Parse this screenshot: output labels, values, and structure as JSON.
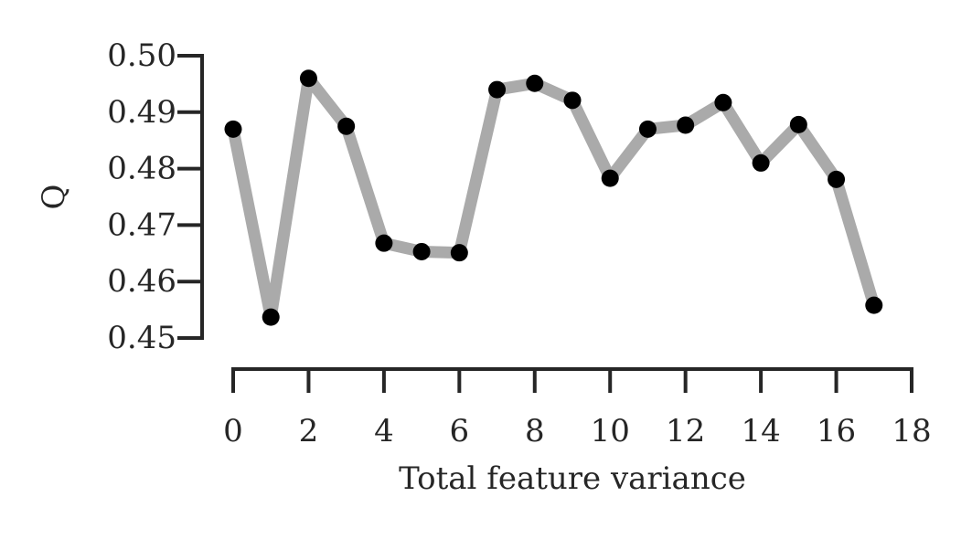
{
  "chart_data": {
    "type": "line",
    "title": "",
    "xlabel": "Total feature variance",
    "ylabel": "Q",
    "xlim": [
      0,
      18
    ],
    "ylim": [
      0.45,
      0.5
    ],
    "x_ticks": [
      0,
      2,
      4,
      6,
      8,
      10,
      12,
      14,
      16,
      18
    ],
    "x_tick_labels": [
      "0",
      "2",
      "4",
      "6",
      "8",
      "10",
      "12",
      "14",
      "16",
      "18"
    ],
    "y_ticks": [
      0.45,
      0.46,
      0.47,
      0.48,
      0.49,
      0.5
    ],
    "y_tick_labels": [
      "0.45",
      "0.46",
      "0.47",
      "0.48",
      "0.49",
      "0.50"
    ],
    "grid": false,
    "legend": "none",
    "series": [
      {
        "x": [
          0,
          1,
          2,
          3,
          4,
          5,
          6,
          7,
          8,
          9,
          10,
          11,
          12,
          13,
          14,
          15,
          16,
          17
        ],
        "y": [
          0.487,
          0.4537,
          0.496,
          0.4875,
          0.4668,
          0.4653,
          0.4651,
          0.494,
          0.4951,
          0.4921,
          0.4783,
          0.487,
          0.4877,
          0.4917,
          0.481,
          0.4878,
          0.4781,
          0.4558
        ],
        "line_color": "#aaaaaa",
        "marker_color": "#000000"
      }
    ]
  }
}
